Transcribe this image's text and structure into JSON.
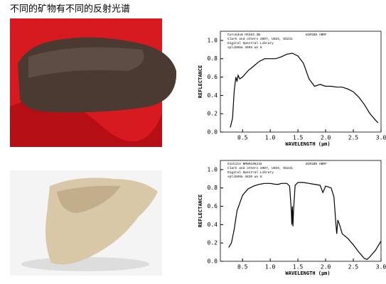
{
  "title": "不同的矿物有不同的反射光谱",
  "chart_data": [
    {
      "type": "line",
      "annotations": [
        "Corundum HS283.3B",
        "W1R1Bb ABRF",
        "Clark and others 2007, USGS, DS231",
        "Digital Spectral Library",
        "splib06a 4603 wv 6"
      ],
      "x_label": "WAVELENGTH (μm)",
      "y_label": "REFLECTANCE",
      "color": "#000000",
      "x": [
        0.28,
        0.32,
        0.35,
        0.38,
        0.4,
        0.42,
        0.45,
        0.5,
        0.6,
        0.7,
        0.8,
        0.9,
        1.0,
        1.1,
        1.2,
        1.3,
        1.4,
        1.5,
        1.6,
        1.7,
        1.8,
        1.9,
        2.0,
        2.1,
        2.2,
        2.3,
        2.4,
        2.5,
        2.6,
        2.7,
        2.8,
        2.9,
        2.95
      ],
      "values": [
        0.05,
        0.15,
        0.45,
        0.6,
        0.55,
        0.62,
        0.58,
        0.6,
        0.67,
        0.72,
        0.77,
        0.8,
        0.8,
        0.8,
        0.82,
        0.85,
        0.86,
        0.83,
        0.75,
        0.58,
        0.5,
        0.52,
        0.5,
        0.5,
        0.49,
        0.49,
        0.47,
        0.44,
        0.38,
        0.3,
        0.2,
        0.13,
        0.1
      ],
      "xlim": [
        0.1,
        3.0
      ],
      "ylim": [
        0,
        1.1
      ],
      "xticks": [
        0.5,
        {
          "value": 1.0,
          "label": "1.0"
        },
        1.5,
        {
          "value": 2.0,
          "label": "2.0"
        },
        2.5,
        {
          "value": 3.0,
          "label": "3.0"
        }
      ],
      "yticks": [
        {
          "value": 0,
          "label": "0.0"
        },
        0.2,
        0.4,
        0.6,
        0.8,
        {
          "value": 1,
          "label": "1.0"
        }
      ]
    },
    {
      "type": "line",
      "annotations": [
        "Dickite NMNH106242",
        "W1R1Bb ABRF",
        "Clark and others 2007, USGS, DS231",
        "Digital Spectral Library",
        "splib06a 4820 wv 6"
      ],
      "x_label": "WAVELENGTH (μm)",
      "y_label": "REFLECTANCE",
      "color": "#000000",
      "x": [
        0.25,
        0.3,
        0.35,
        0.4,
        0.5,
        0.6,
        0.7,
        0.8,
        0.9,
        1.0,
        1.1,
        1.15,
        1.2,
        1.3,
        1.35,
        1.38,
        1.39,
        1.4,
        1.41,
        1.42,
        1.45,
        1.5,
        1.6,
        1.7,
        1.8,
        1.9,
        1.95,
        2.0,
        2.1,
        2.15,
        2.18,
        2.2,
        2.22,
        2.25,
        2.3,
        2.4,
        2.5,
        2.6,
        2.7,
        2.75,
        2.8,
        2.9,
        3.0
      ],
      "values": [
        0.15,
        0.2,
        0.35,
        0.55,
        0.72,
        0.79,
        0.82,
        0.84,
        0.85,
        0.85,
        0.84,
        0.84,
        0.85,
        0.85,
        0.82,
        0.55,
        0.4,
        0.6,
        0.38,
        0.55,
        0.83,
        0.86,
        0.86,
        0.85,
        0.84,
        0.83,
        0.75,
        0.82,
        0.8,
        0.7,
        0.45,
        0.3,
        0.45,
        0.4,
        0.3,
        0.25,
        0.18,
        0.1,
        0.03,
        0.02,
        0.05,
        0.12,
        0.22
      ],
      "xlim": [
        0.1,
        3.0
      ],
      "ylim": [
        0,
        1.1
      ],
      "xticks": [
        0.5,
        {
          "value": 1.0,
          "label": "1.0"
        },
        1.5,
        {
          "value": 2.0,
          "label": "2.0"
        },
        2.5,
        {
          "value": 3.0,
          "label": "3.0"
        }
      ],
      "yticks": [
        {
          "value": 0,
          "label": "0.0"
        },
        0.2,
        0.4,
        0.6,
        0.8,
        {
          "value": 1,
          "label": "1.0"
        }
      ]
    }
  ]
}
